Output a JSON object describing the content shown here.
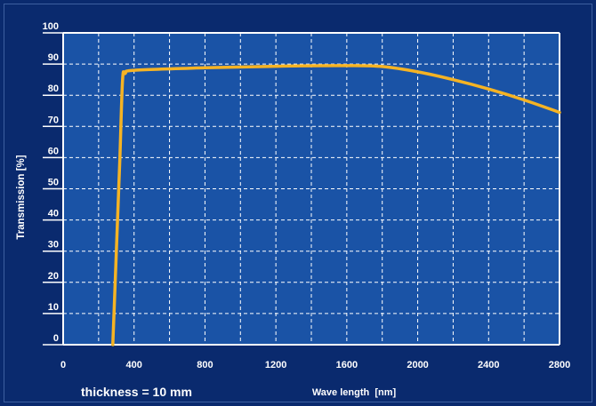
{
  "chart_data": {
    "type": "line",
    "ylabel": "Transmission [%]",
    "xlabel": "Wave length  [nm]",
    "annotation": "thickness = 10 mm",
    "xlim": [
      0,
      2800
    ],
    "ylim": [
      0,
      100
    ],
    "x_ticks": [
      "0",
      "400",
      "800",
      "1200",
      "1600",
      "2000",
      "2400",
      "2800"
    ],
    "y_ticks": [
      "0",
      "10",
      "20",
      "30",
      "40",
      "50",
      "60",
      "70",
      "80",
      "90",
      "100"
    ],
    "grid": true,
    "series": [
      {
        "color": "#f5b324",
        "x": [
          280,
          300,
          320,
          335,
          350,
          400,
          800,
          1200,
          1600,
          1800,
          2000,
          2200,
          2400,
          2600,
          2800
        ],
        "y": [
          0,
          30,
          60,
          85,
          87,
          88,
          88.8,
          89.3,
          89.5,
          89.2,
          87.5,
          85,
          82,
          78.5,
          74.5
        ]
      }
    ],
    "colors": {
      "background": "#0a2a6e",
      "plot_area": "#1a53a6",
      "grid": "#ffffff",
      "text": "#ffffff",
      "line": "#f5b324"
    }
  }
}
